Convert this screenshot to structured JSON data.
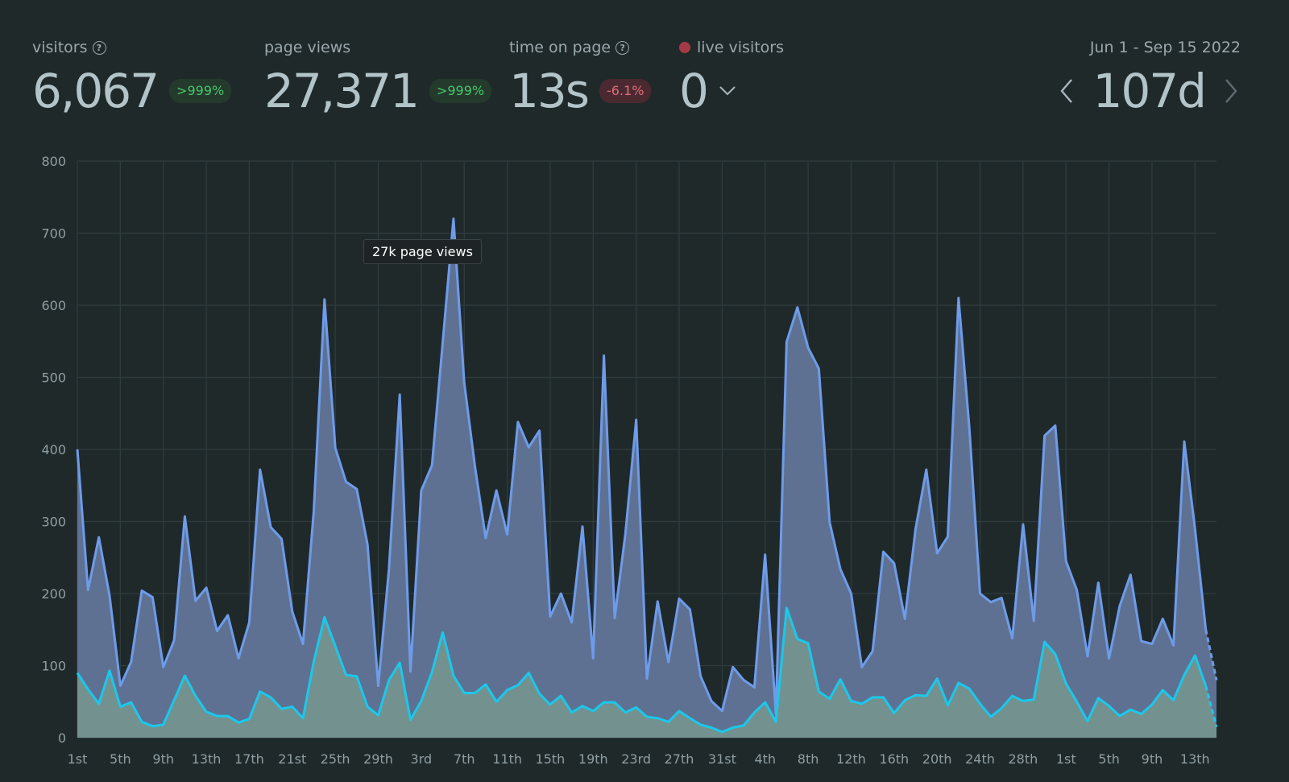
{
  "stats": {
    "visitors": {
      "label": "visitors",
      "value": "6,067",
      "change": ">999%"
    },
    "page_views": {
      "label": "page views",
      "value": "27,371",
      "change": ">999%"
    },
    "time_on_page": {
      "label": "time on page",
      "value": "13s",
      "change": "-6.1%"
    },
    "live_visitors": {
      "label": "live visitors",
      "value": "0"
    }
  },
  "range": {
    "dates": "Jun 1 - Sep 15 2022",
    "value": "107d"
  },
  "tooltip": "27k page views",
  "colors": {
    "page_views": "#6e9bea",
    "visitors": "#1bc8eb",
    "up": "#47c76a",
    "down": "#e06d78",
    "live": "#a33a45"
  },
  "chart_data": {
    "type": "area",
    "ylim": [
      0,
      800
    ],
    "yticks": [
      0,
      100,
      200,
      300,
      400,
      500,
      600,
      700,
      800
    ],
    "grid": true,
    "x_tick_labels": [
      "1st",
      "5th",
      "9th",
      "13th",
      "17th",
      "21st",
      "25th",
      "29th",
      "3rd",
      "7th",
      "11th",
      "15th",
      "19th",
      "23rd",
      "27th",
      "31st",
      "4th",
      "8th",
      "12th",
      "16th",
      "20th",
      "24th",
      "28th",
      "1st",
      "5th",
      "9th",
      "13th"
    ],
    "x_tick_every": 4,
    "series": [
      {
        "name": "page views",
        "values": [
          400,
          205,
          278,
          197,
          72,
          105,
          204,
          195,
          98,
          135,
          307,
          190,
          208,
          148,
          170,
          110,
          160,
          372,
          292,
          276,
          175,
          130,
          315,
          608,
          402,
          355,
          345,
          268,
          72,
          234,
          476,
          92,
          343,
          378,
          548,
          720,
          493,
          376,
          277,
          343,
          282,
          438,
          403,
          426,
          168,
          200,
          160,
          293,
          110,
          530,
          166,
          283,
          441,
          82,
          189,
          105,
          193,
          178,
          85,
          51,
          37,
          98,
          80,
          70,
          254,
          33,
          549,
          597,
          541,
          512,
          299,
          234,
          200,
          98,
          120,
          258,
          242,
          165,
          290,
          372,
          256,
          279,
          610,
          430,
          200,
          188,
          194,
          138,
          296,
          162,
          419,
          433,
          245,
          205,
          113,
          215,
          110,
          183,
          226,
          134,
          130,
          165,
          128,
          411,
          290,
          150,
          80
        ]
      },
      {
        "name": "visitors",
        "values": [
          90,
          67,
          47,
          93,
          43,
          49,
          22,
          16,
          18,
          52,
          86,
          58,
          36,
          30,
          30,
          21,
          26,
          64,
          56,
          40,
          43,
          27,
          106,
          167,
          127,
          87,
          85,
          43,
          31,
          80,
          104,
          25,
          51,
          91,
          146,
          86,
          62,
          62,
          74,
          50,
          66,
          73,
          90,
          61,
          46,
          58,
          35,
          44,
          37,
          49,
          49,
          35,
          42,
          29,
          27,
          22,
          37,
          27,
          18,
          14,
          8,
          14,
          17,
          35,
          49,
          22,
          180,
          137,
          131,
          64,
          54,
          81,
          51,
          47,
          56,
          56,
          34,
          52,
          59,
          58,
          82,
          45,
          76,
          68,
          47,
          29,
          41,
          58,
          51,
          53,
          133,
          116,
          75,
          50,
          23,
          55,
          44,
          30,
          39,
          33,
          46,
          66,
          52,
          87,
          114,
          72,
          15
        ]
      }
    ]
  }
}
